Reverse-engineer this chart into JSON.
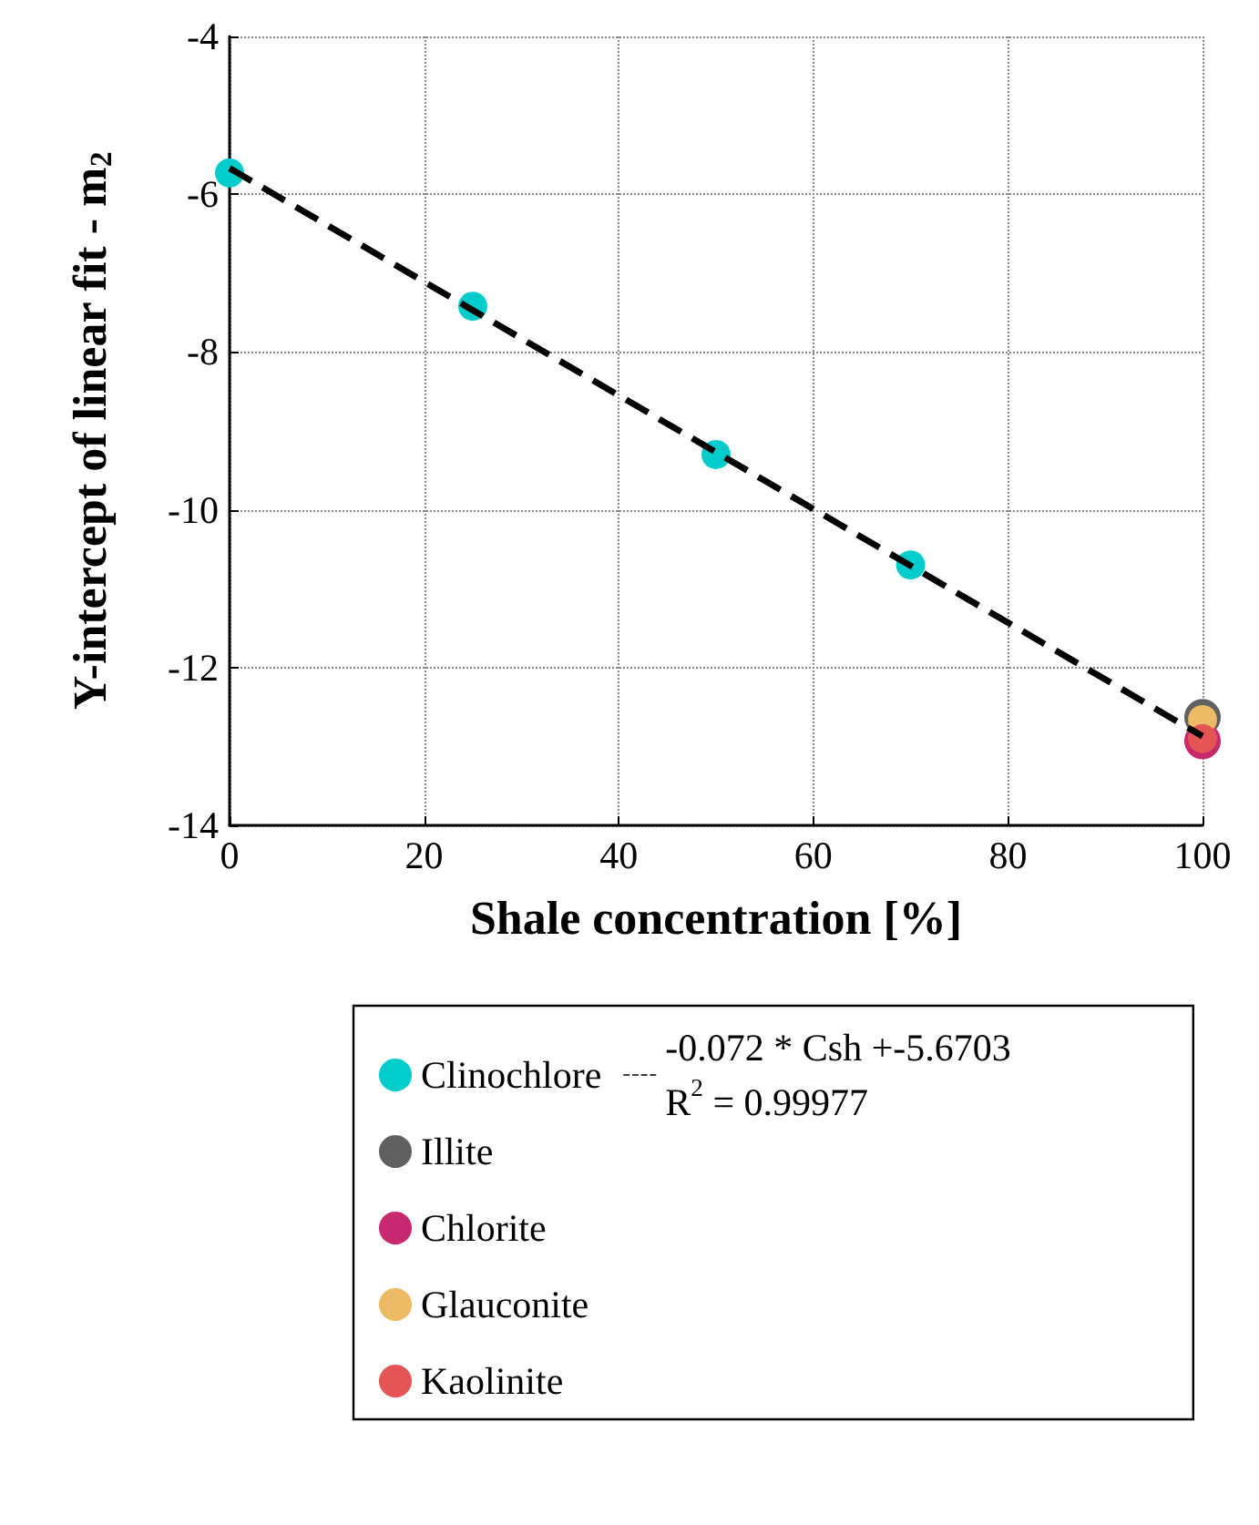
{
  "chart_data": {
    "type": "scatter",
    "xlabel": "Shale concentration [%]",
    "ylabel": "Y-intercept of linear fit - m$_{2}$",
    "xlim": [
      0,
      100
    ],
    "xticks": [
      0,
      20,
      40,
      60,
      80,
      100
    ],
    "ylim": [
      -14,
      -4
    ],
    "yticks": [
      -14,
      -12,
      -10,
      -8,
      -6,
      -4
    ],
    "grid": true,
    "legend": "bottom",
    "marker": "circle",
    "series": [
      {
        "name": "Clinochlore",
        "color": "#00cccc",
        "x": [
          0,
          25,
          50,
          70
        ],
        "values": [
          -5.73,
          -7.42,
          -9.3,
          -10.7
        ]
      },
      {
        "name": "Illite",
        "color": "#606060",
        "x": [
          100
        ],
        "values": [
          -12.63
        ]
      },
      {
        "name": "Chlorite",
        "color": "#c8286e",
        "x": [
          100
        ],
        "values": [
          -12.93
        ]
      },
      {
        "name": "Glauconite",
        "color": "#ecbc64",
        "x": [
          100
        ],
        "values": [
          -12.66
        ]
      },
      {
        "name": "Kaolinite",
        "color": "#e65555",
        "x": [
          100
        ],
        "values": [
          -12.9
        ]
      },
      {
        "name": "-0.072 * Csh +-5.6703\nR$^{2}$ = 0.99977",
        "type": "line",
        "line_style": "dashed",
        "marker": "none",
        "color": "#000000",
        "x": [
          0,
          100
        ],
        "values": [
          -5.67,
          -12.87
        ]
      }
    ]
  }
}
